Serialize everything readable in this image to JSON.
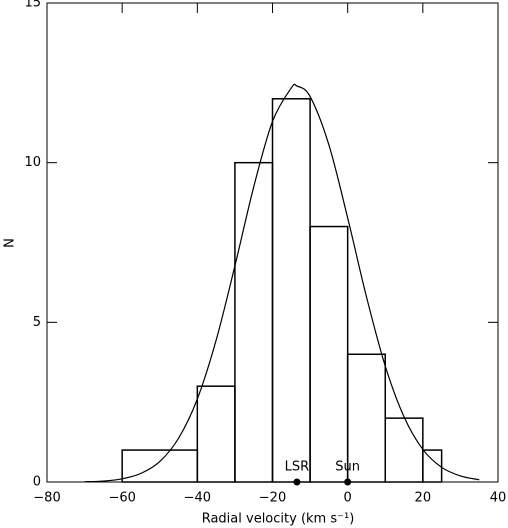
{
  "chart_data": {
    "type": "histogram",
    "xlabel": "Radial velocity (km s⁻¹)",
    "ylabel": "N",
    "bins": [
      -60,
      -40,
      -30,
      -20,
      -10,
      0,
      10,
      20,
      25
    ],
    "values": [
      1,
      3,
      10,
      12,
      8,
      4,
      2,
      1
    ],
    "color": "#000000",
    "curve": {
      "x": [
        -70,
        -65,
        -60,
        -55,
        -50,
        -45,
        -40,
        -35,
        -30,
        -25,
        -20,
        -15,
        -13.5,
        -10,
        -5,
        0,
        5,
        10,
        15,
        20,
        25,
        30,
        35
      ],
      "y": [
        0.01,
        0.03,
        0.1,
        0.27,
        0.64,
        1.37,
        2.6,
        4.44,
        6.77,
        9.24,
        11.29,
        12.34,
        12.4,
        12.07,
        10.56,
        8.27,
        5.8,
        3.63,
        2.04,
        1.02,
        0.46,
        0.19,
        0.07
      ]
    },
    "markers": [
      {
        "label": "LSR",
        "x": -13.5
      },
      {
        "label": "Sun",
        "x": 0
      }
    ],
    "xlim": [
      -80,
      40
    ],
    "ylim": [
      0,
      15
    ],
    "xticks": [
      {
        "value": -80,
        "label": "−80"
      },
      {
        "value": -60,
        "label": "−60"
      },
      {
        "value": -40,
        "label": "−40"
      },
      {
        "value": -20,
        "label": "−20"
      },
      0,
      20,
      40
    ],
    "yticks": [
      0,
      5,
      10,
      15
    ]
  }
}
